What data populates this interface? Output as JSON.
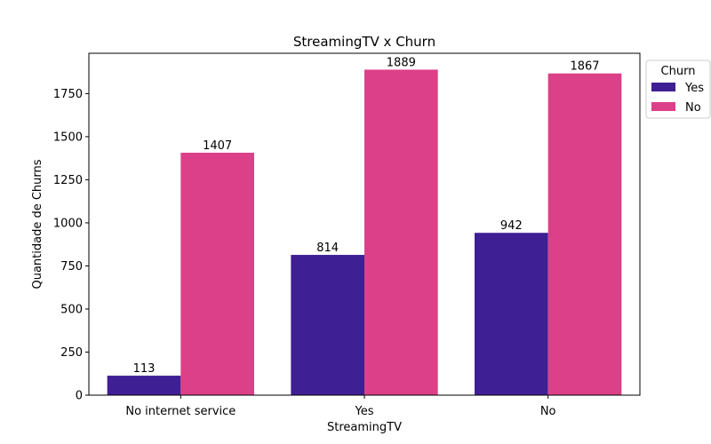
{
  "chart_data": {
    "type": "bar",
    "title": "StreamingTV x Churn",
    "xlabel": "StreamingTV",
    "ylabel": "Quantidade de Churns",
    "categories": [
      "No internet service",
      "Yes",
      "No"
    ],
    "series": [
      {
        "name": "Yes",
        "values": [
          113,
          814,
          942
        ],
        "color": "#3f1f94"
      },
      {
        "name": "No",
        "values": [
          1407,
          1889,
          1867
        ],
        "color": "#dc4088"
      }
    ],
    "ylim": [
      0,
      1984
    ],
    "yticks": [
      0,
      250,
      500,
      750,
      1000,
      1250,
      1500,
      1750
    ],
    "legend": {
      "title": "Churn",
      "placement": "outside-top-right"
    },
    "grid": false
  }
}
